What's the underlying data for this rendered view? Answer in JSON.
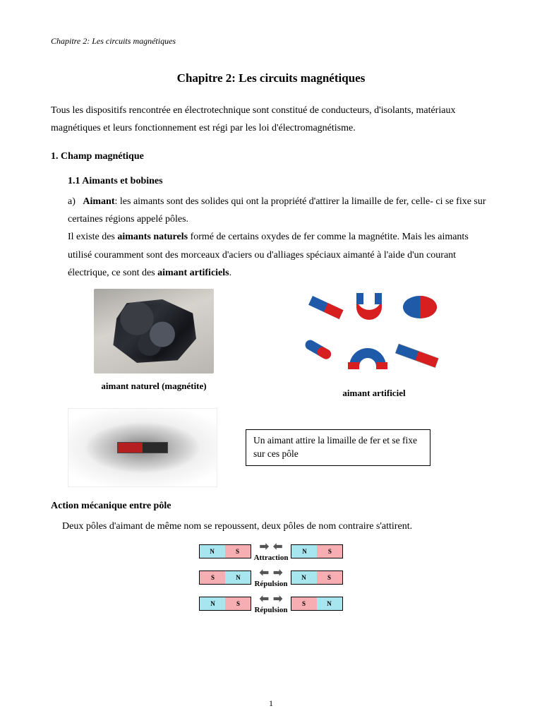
{
  "running_header": "Chapitre 2: Les circuits magnétiques",
  "title": "Chapitre 2: Les circuits magnétiques",
  "intro": "Tous les dispositifs rencontrée en électrotechnique sont constitué de conducteurs, d'isolants, matériaux magnétiques et leurs fonctionnement est régi par les loi d'électromagnétisme.",
  "section1": {
    "heading": "1. Champ magnétique",
    "sub_heading": "1.1 Aimants et bobines",
    "item_label": "a)",
    "aimant_word": "Aimant",
    "aimant_def": ": les aimants sont des solides qui ont la propriété d'attirer la limaille de fer, celle- ci se fixe sur certaines régions appelé pôles.",
    "naturels_pre": "Il existe des ",
    "naturels_bold": "aimants naturels",
    "naturels_post": " formé de certains oxydes de fer comme la magnétite. Mais les aimants utilisé couramment sont des morceaux d'aciers ou d'alliages spéciaux aimanté à l'aide d'un courant électrique, ce sont des ",
    "artificiels_bold": "aimant artificiels",
    "artificiels_post": "."
  },
  "figures": {
    "natural_caption": "aimant naturel (magnétite)",
    "artificial_caption": "aimant artificiel",
    "colors": {
      "magnet_blue": "#1e5aa8",
      "magnet_red": "#d81f1f",
      "gray": "#aaaaaa"
    }
  },
  "note_box": "Un aimant attire la limaille de fer et se fixe sur ces pôle",
  "mechanical": {
    "heading": "Action mécanique entre pôle",
    "text": "Deux pôles d'aimant de même nom se repoussent, deux pôles de nom contraire s'attirent.",
    "rows": [
      {
        "left": [
          "N",
          "S"
        ],
        "right": [
          "N",
          "S"
        ],
        "dir": "in",
        "label": "Attraction"
      },
      {
        "left": [
          "S",
          "N"
        ],
        "right": [
          "N",
          "S"
        ],
        "dir": "out",
        "label": "Répulsion"
      },
      {
        "left": [
          "N",
          "S"
        ],
        "right": [
          "S",
          "N"
        ],
        "dir": "out",
        "label": "Répulsion"
      }
    ],
    "pole_colors": {
      "N": "#a7e6ee",
      "S": "#f7aeb3"
    },
    "arrow_color": "#6b6b6b"
  },
  "page_number": "1"
}
